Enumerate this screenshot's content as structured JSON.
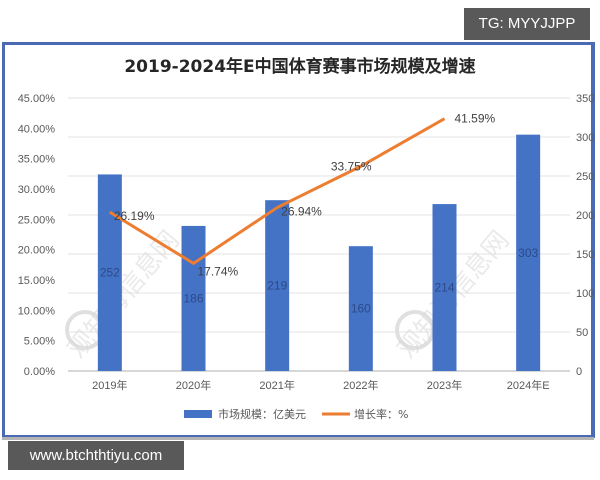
{
  "badges": {
    "top_right": "TG: MYYJJPP",
    "bottom_left": "www.btchthtiyu.com"
  },
  "watermark": "观知海信息网",
  "chart_data": {
    "type": "bar+line",
    "title": "2019-2024年E中国体育赛事市场规模及增速",
    "categories": [
      "2019年",
      "2020年",
      "2021年",
      "2022年",
      "2023年",
      "2024年E"
    ],
    "series": [
      {
        "name": "市场规模：亿美元",
        "type": "bar",
        "axis": "right",
        "color": "#4472c4",
        "values": [
          252,
          186,
          219,
          160,
          214,
          303
        ],
        "labels": [
          "252",
          "186",
          "219",
          "160",
          "214",
          "303"
        ]
      },
      {
        "name": "增长率：%",
        "type": "line",
        "axis": "left",
        "color": "#ed7d31",
        "values": [
          26.19,
          17.74,
          26.94,
          33.75,
          41.59,
          null
        ],
        "labels": [
          "26.19%",
          "17.74%",
          "26.94%",
          "33.75%",
          "41.59%",
          ""
        ]
      }
    ],
    "left_axis": {
      "ticks": [
        "0.00%",
        "5.00%",
        "10.00%",
        "15.00%",
        "20.00%",
        "25.00%",
        "30.00%",
        "35.00%",
        "40.00%",
        "45.00%"
      ],
      "range": [
        0,
        45
      ]
    },
    "right_axis": {
      "ticks": [
        "0",
        "50",
        "100",
        "150",
        "200",
        "250",
        "300",
        "350"
      ],
      "range": [
        0,
        350
      ]
    },
    "xlabel": "",
    "ylabel": "",
    "grid": true,
    "legend_position": "bottom",
    "legend": [
      "市场规模：亿美元",
      "增长率：%"
    ]
  }
}
